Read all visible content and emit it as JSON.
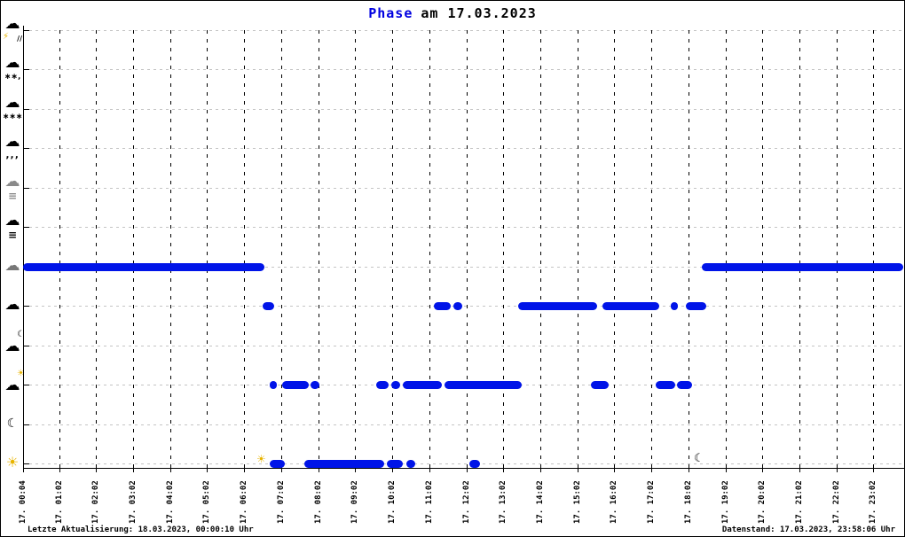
{
  "title": {
    "accent": "Phase",
    "rest": "am 17.03.2023"
  },
  "footer": {
    "left": "Letzte Aktualisierung: 18.03.2023, 00:00:10 Uhr",
    "right": "Datenstand: 17.03.2023, 23:58:06 Uhr"
  },
  "colors": {
    "series": "#0014e8",
    "title_accent": "#0000e0",
    "h_grid": "#c4c4c4",
    "v_grid": "#000000",
    "sun_yellow": "#e8b400",
    "mist_gray": "#8a8a8a",
    "overcast_gray": "#787878"
  },
  "x_axis": {
    "tick_labels": [
      "17. 00:04",
      "17. 01:02",
      "17. 02:02",
      "17. 03:02",
      "17. 04:02",
      "17. 05:02",
      "17. 06:02",
      "17. 07:02",
      "17. 08:02",
      "17. 09:02",
      "17. 10:02",
      "17. 11:02",
      "17. 12:02",
      "17. 13:02",
      "17. 14:02",
      "17. 15:02",
      "17. 16:02",
      "17. 17:02",
      "17. 18:02",
      "17. 19:02",
      "17. 20:02",
      "17. 21:02",
      "17. 22:02",
      "17. 23:02"
    ]
  },
  "y_axis": {
    "categories": [
      {
        "id": "thunderstorm",
        "icon": "thunderstorm-icon",
        "main": "☁",
        "sub_a": "⚡",
        "sub_b": "∕∕"
      },
      {
        "id": "sleet",
        "icon": "sleet-icon",
        "main": "☁",
        "sub_b": "∗∗‚"
      },
      {
        "id": "snow",
        "icon": "snow-icon",
        "main": "☁",
        "sub_b": "∗∗∗"
      },
      {
        "id": "rain",
        "icon": "rain-icon",
        "main": "☁",
        "sub_b": "‚‚‚"
      },
      {
        "id": "mist",
        "icon": "mist-icon",
        "main": "☁",
        "sub_b": "≡"
      },
      {
        "id": "fog",
        "icon": "fog-icon",
        "main": "☁",
        "sub_b": "≡"
      },
      {
        "id": "overcast",
        "icon": "overcast-cloud-icon",
        "main": "☁"
      },
      {
        "id": "cloudy",
        "icon": "cloudy-icon",
        "main": "☁"
      },
      {
        "id": "partly-cloudy-night",
        "icon": "cloud-moon-icon",
        "main": "☁",
        "ov": "☾"
      },
      {
        "id": "partly-cloudy-day",
        "icon": "cloud-sun-icon",
        "main": "☁",
        "ov": "☀"
      },
      {
        "id": "clear-night",
        "icon": "moon-icon",
        "main": "☾"
      },
      {
        "id": "clear-day",
        "icon": "sun-icon",
        "main": "☀"
      }
    ]
  },
  "chart_data": {
    "type": "scatter",
    "description": "Weather phase category vs. time of day; 5-minute observations drawn as blue dotted runs",
    "date": "17.03.2023",
    "x_range": [
      "00:00",
      "24:00"
    ],
    "categories_top_to_bottom": [
      "thunderstorm",
      "sleet",
      "snow",
      "rain",
      "mist",
      "fog",
      "overcast",
      "cloudy",
      "partly-cloudy-night",
      "partly-cloudy-day",
      "clear-night",
      "clear-day"
    ],
    "series": [
      {
        "category": "overcast",
        "segments": [
          [
            "00:04",
            "06:35"
          ],
          [
            "18:24",
            "23:50"
          ]
        ]
      },
      {
        "category": "cloudy",
        "segments": [
          [
            "06:32",
            "06:50"
          ],
          [
            "11:09",
            "11:37"
          ],
          [
            "11:41",
            "11:55"
          ],
          [
            "13:26",
            "15:34"
          ],
          [
            "15:43",
            "17:15"
          ],
          [
            "17:33",
            "17:45"
          ],
          [
            "17:58",
            "18:31"
          ]
        ]
      },
      {
        "category": "partly-cloudy-day",
        "segments": [
          [
            "06:43",
            "06:55"
          ],
          [
            "07:04",
            "07:47"
          ],
          [
            "07:50",
            "08:04"
          ],
          [
            "09:36",
            "09:56"
          ],
          [
            "10:00",
            "10:15"
          ],
          [
            "10:19",
            "11:22"
          ],
          [
            "11:27",
            "13:32"
          ],
          [
            "15:24",
            "15:53"
          ],
          [
            "17:09",
            "17:41"
          ],
          [
            "17:44",
            "18:09"
          ]
        ]
      },
      {
        "category": "clear-day",
        "segments": [
          [
            "06:43",
            "07:08"
          ],
          [
            "07:39",
            "09:49"
          ],
          [
            "09:53",
            "10:19"
          ],
          [
            "10:25",
            "10:39"
          ],
          [
            "12:07",
            "12:24"
          ]
        ]
      }
    ],
    "markers": [
      {
        "id": "sunrise",
        "icon": "sunrise-sun-icon",
        "time": "06:30",
        "glyph": "☀"
      },
      {
        "id": "sunset",
        "icon": "sunset-moon-icon",
        "time": "18:20",
        "glyph": "☾"
      }
    ]
  }
}
